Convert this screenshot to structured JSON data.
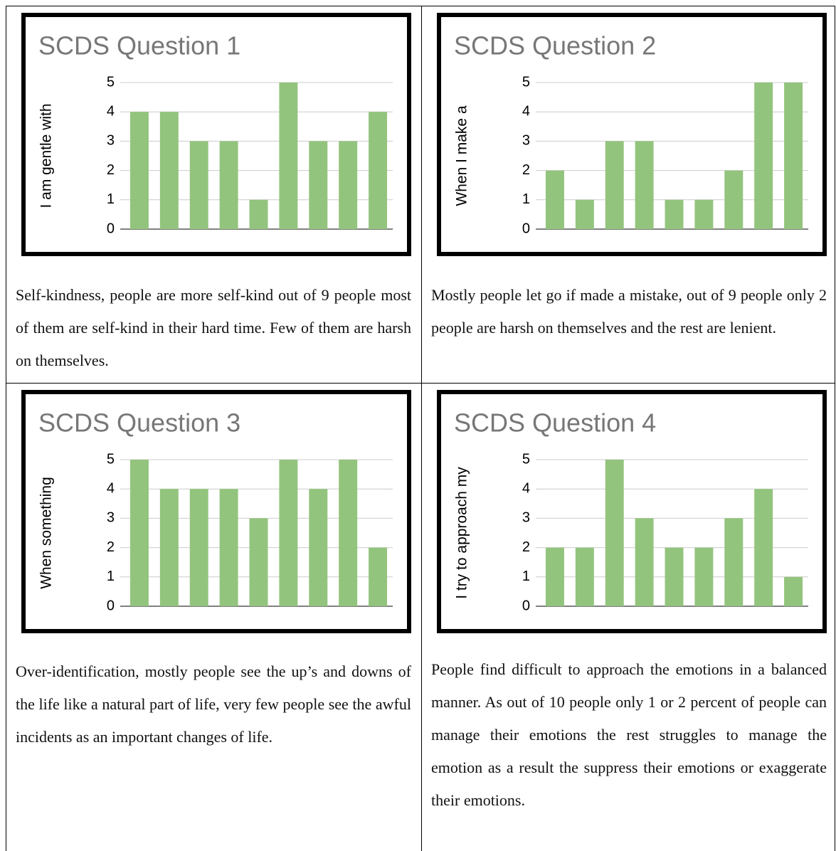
{
  "chart_data": [
    {
      "type": "bar",
      "title": "SCDS Question 1",
      "y_label": "I am gentle with",
      "categories": [
        null,
        null,
        null,
        null,
        null,
        null,
        null,
        null,
        null
      ],
      "values": [
        4,
        4,
        3,
        3,
        1,
        5,
        3,
        3,
        4
      ],
      "color": "#93c47d",
      "ylim": [
        0,
        5
      ],
      "yticks": [
        0,
        1,
        2,
        3,
        4,
        5
      ],
      "grid": true
    },
    {
      "type": "bar",
      "title": "SCDS Question 2",
      "y_label": "When I make a",
      "categories": [
        null,
        null,
        null,
        null,
        null,
        null,
        null,
        null,
        null
      ],
      "values": [
        2,
        1,
        3,
        3,
        1,
        1,
        2,
        5,
        5
      ],
      "color": "#93c47d",
      "ylim": [
        0,
        5
      ],
      "yticks": [
        0,
        1,
        2,
        3,
        4,
        5
      ],
      "grid": true
    },
    {
      "type": "bar",
      "title": "SCDS Question 3",
      "y_label": "When something",
      "categories": [
        null,
        null,
        null,
        null,
        null,
        null,
        null,
        null,
        null
      ],
      "values": [
        5,
        4,
        4,
        4,
        3,
        5,
        4,
        5,
        2
      ],
      "color": "#93c47d",
      "ylim": [
        0,
        5
      ],
      "yticks": [
        0,
        1,
        2,
        3,
        4,
        5
      ],
      "grid": true
    },
    {
      "type": "bar",
      "title": "SCDS Question 4",
      "y_label": "I try to approach my",
      "categories": [
        null,
        null,
        null,
        null,
        null,
        null,
        null,
        null,
        null
      ],
      "values": [
        2,
        2,
        5,
        3,
        2,
        2,
        3,
        4,
        1
      ],
      "color": "#93c47d",
      "ylim": [
        0,
        5
      ],
      "yticks": [
        0,
        1,
        2,
        3,
        4,
        5
      ],
      "grid": true
    }
  ],
  "captions": [
    "Self-kindness, people are more self-kind out of 9 people most of them are self-kind in their hard time. Few of them are harsh on themselves.",
    "Mostly people let go if made a mistake, out of 9 people only 2 people are harsh on themselves and the rest are lenient.",
    "Over-identification, mostly people see the up’s and downs of the life like a natural part of life, very few people see the awful incidents as an important changes of life.",
    "People find difficult to approach the emotions in a balanced manner. As out of 10 people only 1 or 2 percent of people can manage their emotions the rest struggles to manage the emotion as a result the suppress their emotions or exaggerate their emotions."
  ]
}
